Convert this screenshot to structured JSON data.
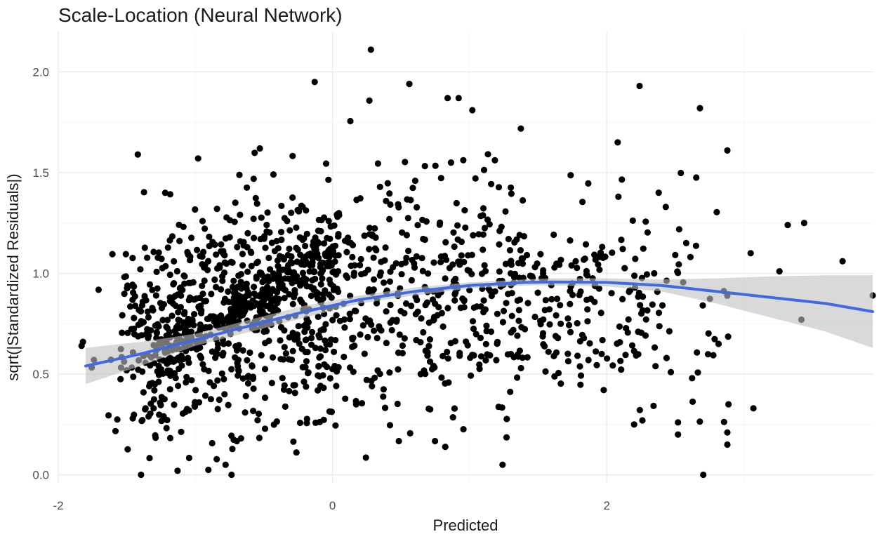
{
  "chart_data": {
    "type": "scatter",
    "title": "Scale-Location (Neural Network)",
    "xlabel": "Predicted",
    "ylabel": "sqrt(|Standardized Residuals|)",
    "xlim": [
      -2.0,
      3.95
    ],
    "ylim": [
      -0.04,
      2.2
    ],
    "x_ticks": [
      -2,
      0,
      2
    ],
    "x_tick_labels": [
      "-2",
      "0",
      "2"
    ],
    "y_ticks": [
      0.0,
      0.5,
      1.0,
      1.5,
      2.0
    ],
    "y_tick_labels": [
      "0.0",
      "0.5",
      "1.0",
      "1.5",
      "2.0"
    ],
    "grid": true,
    "legend": "none",
    "colors": {
      "points": "#000000",
      "smooth_line": "#4169e1",
      "confidence_band": "#bfbfbf"
    },
    "point_count_approx": 1500,
    "highlighted_points": [
      {
        "x": -1.83,
        "y": 0.64
      },
      {
        "x": -1.82,
        "y": 0.66
      },
      {
        "x": -1.74,
        "y": 0.57
      },
      {
        "x": -1.42,
        "y": 1.59
      },
      {
        "x": -1.13,
        "y": 0.02
      },
      {
        "x": -0.98,
        "y": 1.57
      },
      {
        "x": -0.78,
        "y": 0.05
      },
      {
        "x": -0.53,
        "y": 1.62
      },
      {
        "x": -0.13,
        "y": 1.95
      },
      {
        "x": 0.28,
        "y": 2.11
      },
      {
        "x": 0.56,
        "y": 1.94
      },
      {
        "x": 0.84,
        "y": 1.87
      },
      {
        "x": 0.92,
        "y": 1.87
      },
      {
        "x": 1.02,
        "y": 1.81
      },
      {
        "x": 2.08,
        "y": 1.65
      },
      {
        "x": 2.24,
        "y": 1.93
      },
      {
        "x": 2.68,
        "y": 1.82
      },
      {
        "x": 2.88,
        "y": 1.61
      },
      {
        "x": 3.05,
        "y": 1.1
      },
      {
        "x": 3.26,
        "y": 1.01
      },
      {
        "x": 3.32,
        "y": 1.24
      },
      {
        "x": 3.44,
        "y": 1.25
      },
      {
        "x": 3.72,
        "y": 1.06
      },
      {
        "x": 3.94,
        "y": 0.89
      },
      {
        "x": 3.42,
        "y": 0.77
      },
      {
        "x": 3.07,
        "y": 0.33
      },
      {
        "x": 2.88,
        "y": 0.15
      },
      {
        "x": 2.88,
        "y": 0.21
      },
      {
        "x": 2.52,
        "y": 0.2
      },
      {
        "x": 2.52,
        "y": 0.26
      },
      {
        "x": 2.26,
        "y": 0.27
      },
      {
        "x": 2.2,
        "y": 0.25
      },
      {
        "x": 1.24,
        "y": 0.05
      }
    ],
    "smooth": {
      "x": [
        -1.8,
        -1.4,
        -1.0,
        -0.6,
        -0.2,
        0.2,
        0.6,
        1.0,
        1.4,
        1.6,
        2.0,
        2.4,
        2.8,
        3.2,
        3.6,
        3.94
      ],
      "y": [
        0.54,
        0.6,
        0.67,
        0.74,
        0.81,
        0.87,
        0.91,
        0.94,
        0.955,
        0.957,
        0.955,
        0.94,
        0.91,
        0.88,
        0.85,
        0.81
      ],
      "upper": [
        0.63,
        0.66,
        0.7,
        0.77,
        0.84,
        0.89,
        0.93,
        0.955,
        0.97,
        0.975,
        0.975,
        0.97,
        0.975,
        0.985,
        0.99,
        0.99
      ],
      "lower": [
        0.45,
        0.54,
        0.64,
        0.71,
        0.78,
        0.85,
        0.89,
        0.925,
        0.94,
        0.94,
        0.935,
        0.91,
        0.85,
        0.78,
        0.71,
        0.63
      ]
    }
  }
}
